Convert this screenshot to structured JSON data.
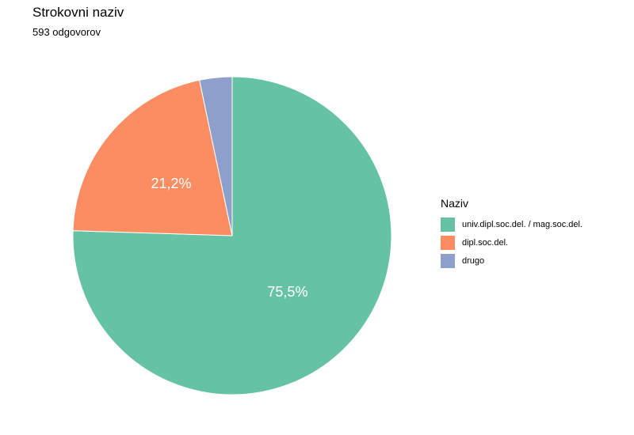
{
  "chart_data": {
    "type": "pie",
    "title": "Strokovni naziv",
    "subtitle": "593 odgovorov",
    "legend_title": "Naziv",
    "legend_position": "right",
    "start": "top",
    "direction": "clockwise",
    "slices": [
      {
        "label": "univ.dipl.soc.del. / mag.soc.del.",
        "value": 75.5,
        "display": "75,5%",
        "color": "#66C2A5"
      },
      {
        "label": "dipl.soc.del.",
        "value": 21.2,
        "display": "21,2%",
        "color": "#FC8D62"
      },
      {
        "label": "drugo",
        "value": 3.3,
        "display": "",
        "color": "#8DA0CB"
      }
    ]
  }
}
